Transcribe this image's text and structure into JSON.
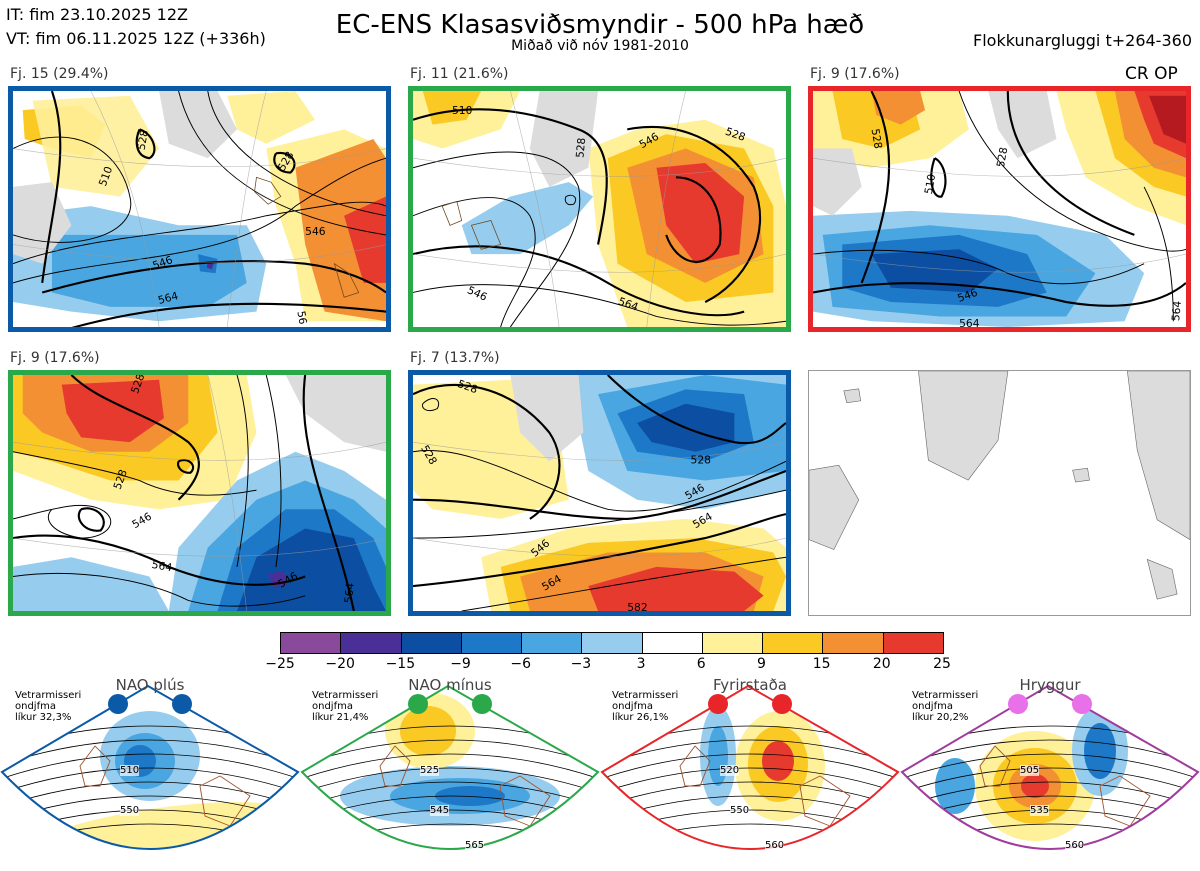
{
  "header": {
    "it_line": "IT: fim 23.10.2025 12Z",
    "vt_line": "VT: fim 06.11.2025 12Z  (+336h)",
    "title": "EC-ENS Klasasviðsmyndir - 500 hPa hæð",
    "subtitle": "Miðað við nóv 1981-2010",
    "window": "Flokkunargluggi t+264-360"
  },
  "panels": [
    {
      "label": "Fj. 15 (29.4%)",
      "border": "#0a5aa8",
      "contours": [
        "510",
        "528",
        "528",
        "546",
        "546",
        "564",
        "56"
      ]
    },
    {
      "label": "Fj. 11 (21.6%)",
      "border": "#2aa84a",
      "contours": [
        "510",
        "528",
        "528",
        "546",
        "546",
        "564"
      ]
    },
    {
      "label": "Fj. 9 (17.6%)",
      "border": "#e8262a",
      "tag": "CR OP",
      "contours": [
        "528",
        "510",
        "528",
        "546",
        "564",
        "564"
      ]
    },
    {
      "label": "Fj. 9 (17.6%)",
      "border": "#2aa84a",
      "contours": [
        "528",
        "528",
        "546",
        "564",
        "546",
        "564"
      ]
    },
    {
      "label": "Fj. 7 (13.7%)",
      "border": "#0a5aa8",
      "contours": [
        "528",
        "528",
        "546",
        "528",
        "546",
        "564",
        "564",
        "582"
      ]
    }
  ],
  "colorbar": {
    "ticks": [
      "−25",
      "−20",
      "−15",
      "−9",
      "−6",
      "−3",
      "3",
      "6",
      "9",
      "15",
      "20",
      "25"
    ],
    "colors": [
      "#8a4a9c",
      "#4a2f96",
      "#0b4ea2",
      "#1e78c8",
      "#4aa6e0",
      "#96cdef",
      "#ffffff",
      "#fff09a",
      "#fbc923",
      "#f39034",
      "#e73a2f",
      "#b51a20"
    ]
  },
  "regimes": [
    {
      "name": "NAO plús",
      "desc": [
        "Vetrarmisseri",
        "ondjfma",
        "líkur 32,3%"
      ],
      "color": "#0a5aa8",
      "contours": [
        "510",
        "550"
      ]
    },
    {
      "name": "NAO mínus",
      "desc": [
        "Vetrarmisseri",
        "ondjfma",
        "líkur 21,4%"
      ],
      "color": "#2aa84a",
      "contours": [
        "525",
        "545",
        "565"
      ]
    },
    {
      "name": "Fyrirstaða",
      "desc": [
        "Vetrarmisseri",
        "ondjfma",
        "líkur 26,1%"
      ],
      "color": "#e8262a",
      "contours": [
        "520",
        "550",
        "560"
      ]
    },
    {
      "name": "Hryggur",
      "desc": [
        "Vetrarmisseri",
        "ondjfma",
        "líkur 20,2%"
      ],
      "color": "#a03c9c",
      "dot_color": "#e870e8",
      "contours": [
        "505",
        "535",
        "560"
      ]
    }
  ]
}
